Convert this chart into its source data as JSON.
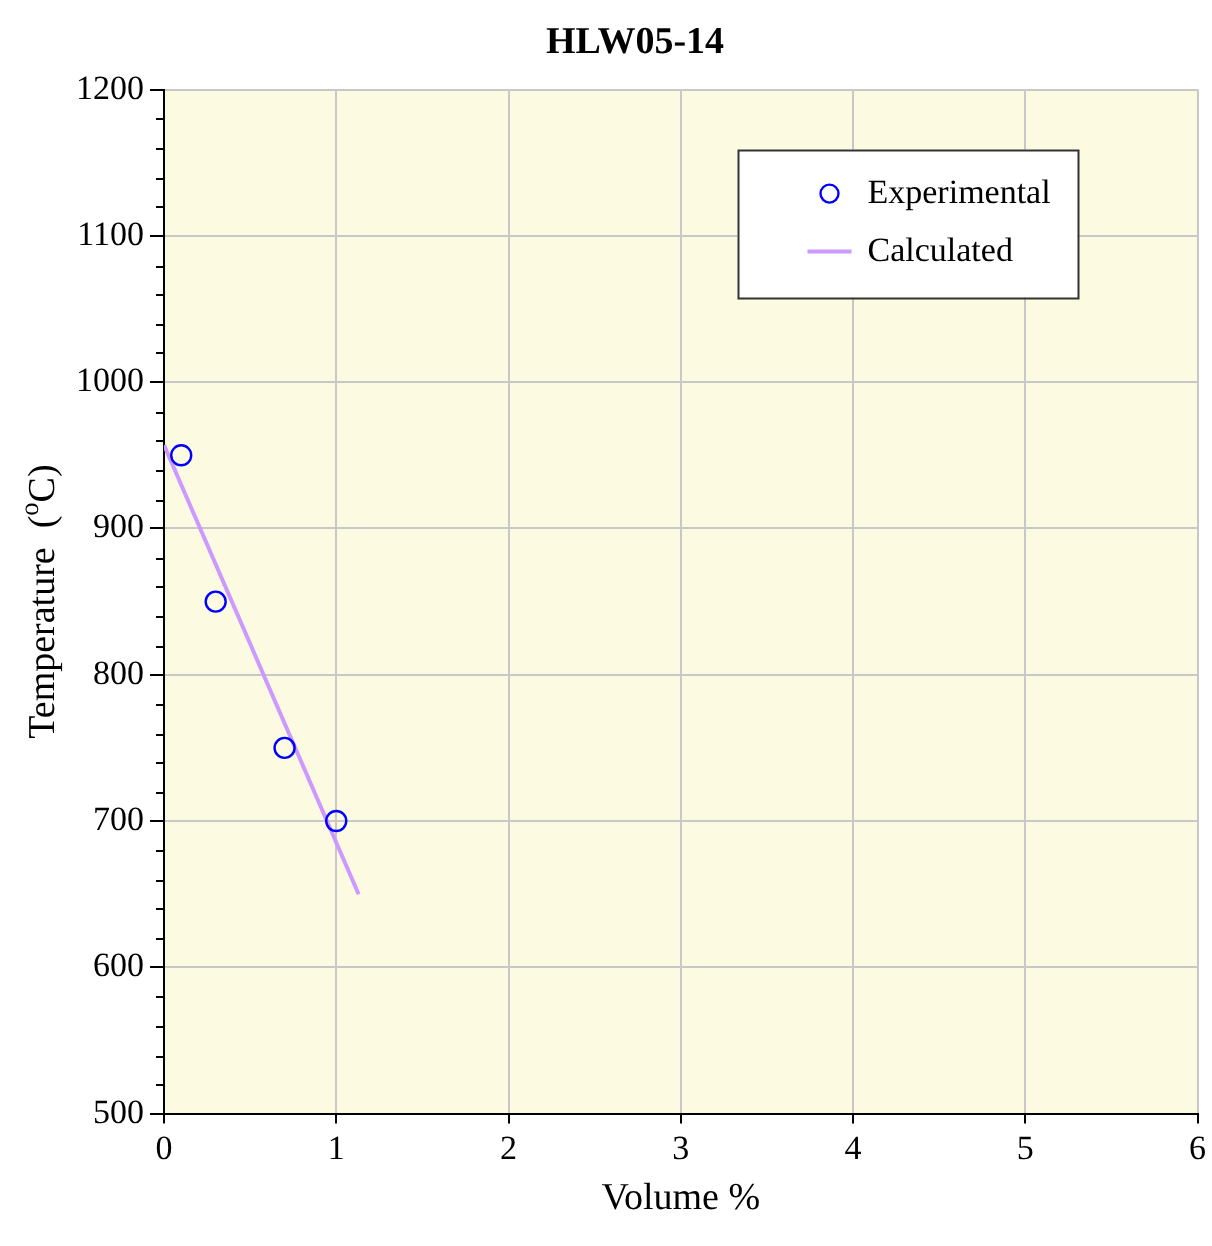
{
  "chart_data": {
    "type": "scatter",
    "title": "HLW05-14",
    "xlabel": "Volume %",
    "ylabel": "Temperature  ($^{o}$C)",
    "xlim": [
      0,
      6
    ],
    "xticks": [
      0,
      1,
      2,
      3,
      4,
      5,
      6
    ],
    "ylim": [
      500,
      1200
    ],
    "yticks": [
      500,
      600,
      700,
      800,
      900,
      1000,
      1100,
      1200
    ],
    "grid": true,
    "legend": "top right",
    "series": [
      {
        "name": "Experimental",
        "marker": "circle",
        "color": "#0000ff",
        "x": [
          0.1,
          0.3,
          0.7,
          1.0
        ],
        "values": [
          950,
          850,
          750,
          700
        ]
      },
      {
        "name": "Calculated",
        "type": "line",
        "marker": "none",
        "line_style": "solid",
        "color": "#cc99ff",
        "x": [
          0,
          1.13
        ],
        "values": [
          957,
          650
        ]
      }
    ]
  }
}
